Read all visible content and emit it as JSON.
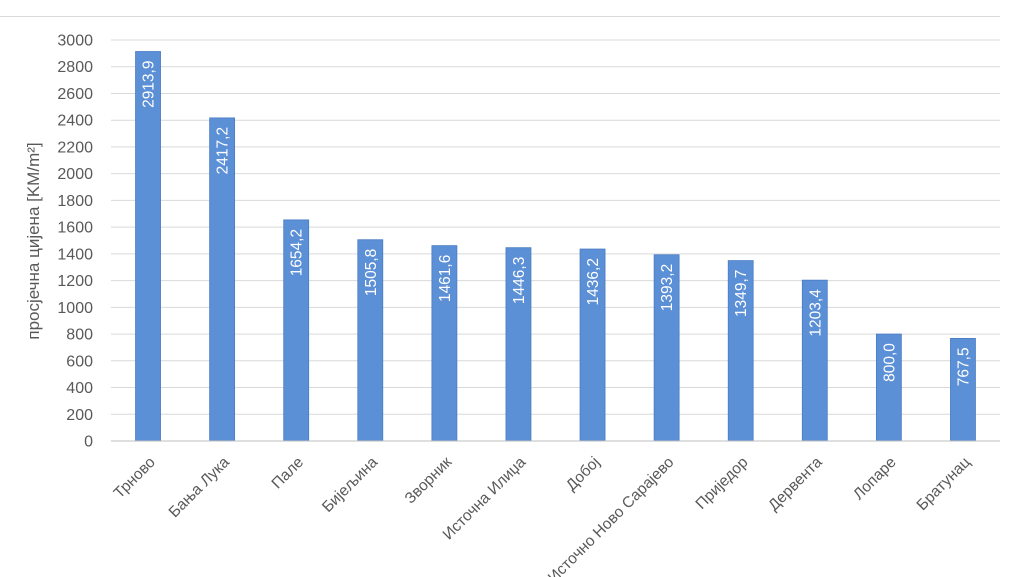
{
  "chart_data": {
    "type": "bar",
    "categories": [
      "Трново",
      "Бања Лука",
      "Пале",
      "Бијељина",
      "Зворник",
      "Источна Илиџа",
      "Добој",
      "Источно Ново Сарајево",
      "Приједор",
      "Дервента",
      "Лопаре",
      "Братунац"
    ],
    "values": [
      2913.9,
      2417.2,
      1654.2,
      1505.8,
      1461.6,
      1446.3,
      1436.2,
      1393.2,
      1349.7,
      1203.4,
      800.0,
      767.5
    ],
    "value_labels": [
      "2913,9",
      "2417,2",
      "1654,2",
      "1505,8",
      "1461,6",
      "1446,3",
      "1436,2",
      "1393,2",
      "1349,7",
      "1203,4",
      "800,0",
      "767,5"
    ],
    "y_ticks": [
      0,
      200,
      400,
      600,
      800,
      1000,
      1200,
      1400,
      1600,
      1800,
      2000,
      2200,
      2400,
      2600,
      2800,
      3000
    ],
    "ylim": [
      0,
      3000
    ],
    "ylabel": "просјечна цијена [KM/m²]",
    "xlabel": "",
    "title": "",
    "grid": true,
    "legend": "none",
    "bar_color": "#5b8fd6",
    "bar_edge_color": "#4a7cc4",
    "grid_color": "#d9d9d9"
  }
}
